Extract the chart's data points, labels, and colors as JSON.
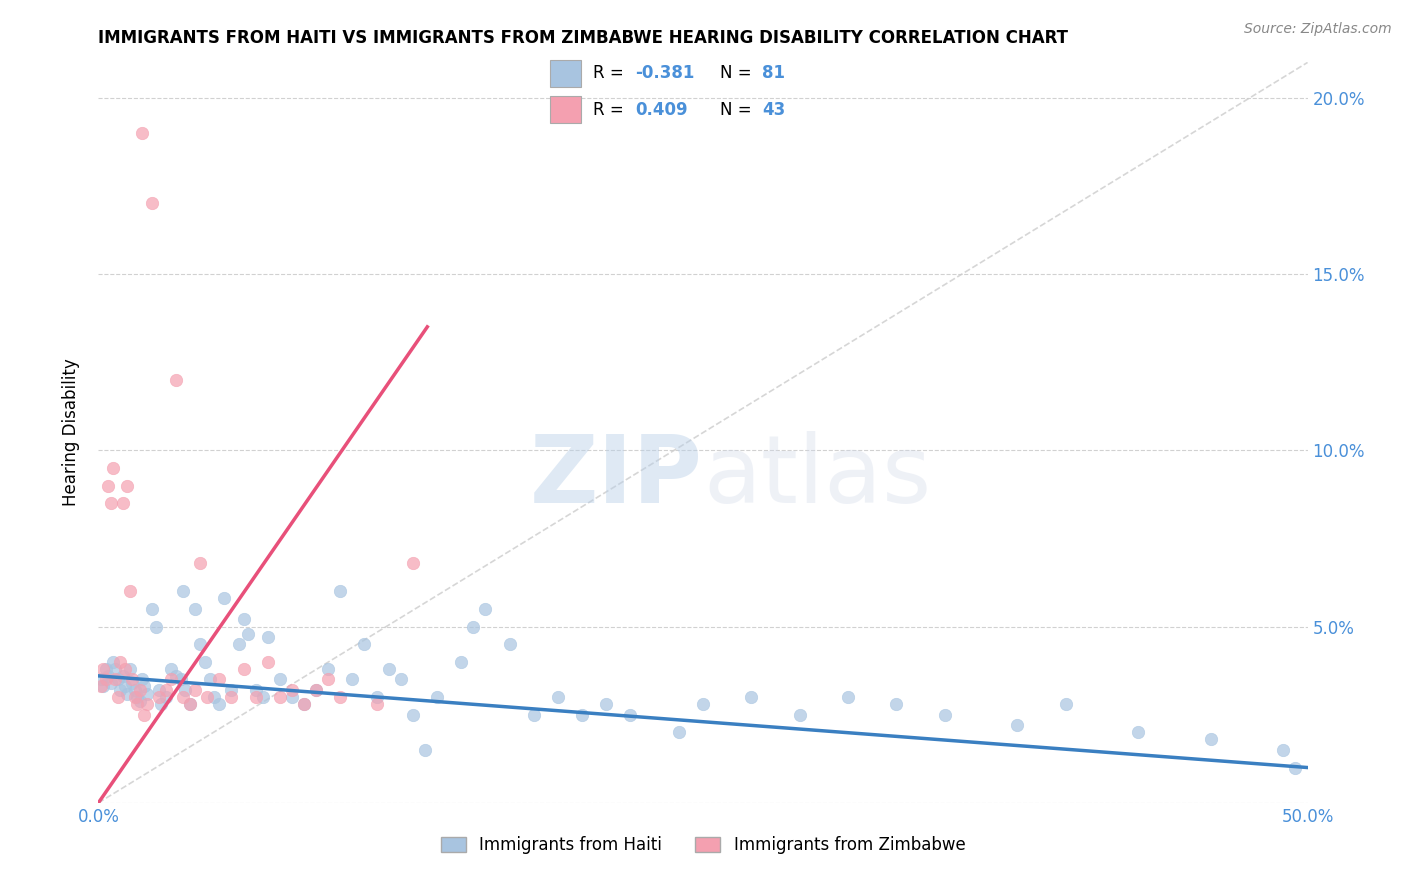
{
  "title": "IMMIGRANTS FROM HAITI VS IMMIGRANTS FROM ZIMBABWE HEARING DISABILITY CORRELATION CHART",
  "source": "Source: ZipAtlas.com",
  "ylabel": "Hearing Disability",
  "xlim": [
    0.0,
    0.5
  ],
  "ylim": [
    0.0,
    0.21
  ],
  "haiti_color": "#a8c4e0",
  "zimbabwe_color": "#f4a0b0",
  "haiti_line_color": "#3a7fc1",
  "zimbabwe_line_color": "#e8507a",
  "diagonal_color": "#cccccc",
  "R_haiti": -0.381,
  "N_haiti": 81,
  "R_zimbabwe": 0.409,
  "N_zimbabwe": 43,
  "legend_label_haiti": "Immigrants from Haiti",
  "legend_label_zimbabwe": "Immigrants from Zimbabwe",
  "watermark_zip": "ZIP",
  "watermark_atlas": "atlas",
  "background_color": "#ffffff",
  "haiti_scatter_x": [
    0.001,
    0.002,
    0.003,
    0.004,
    0.005,
    0.006,
    0.007,
    0.008,
    0.009,
    0.01,
    0.011,
    0.012,
    0.013,
    0.014,
    0.015,
    0.016,
    0.017,
    0.018,
    0.019,
    0.02,
    0.022,
    0.024,
    0.025,
    0.026,
    0.028,
    0.03,
    0.032,
    0.034,
    0.035,
    0.036,
    0.038,
    0.04,
    0.042,
    0.044,
    0.046,
    0.048,
    0.05,
    0.052,
    0.055,
    0.058,
    0.06,
    0.062,
    0.065,
    0.068,
    0.07,
    0.075,
    0.08,
    0.085,
    0.09,
    0.095,
    0.1,
    0.105,
    0.11,
    0.115,
    0.12,
    0.125,
    0.13,
    0.135,
    0.14,
    0.15,
    0.155,
    0.16,
    0.17,
    0.18,
    0.19,
    0.2,
    0.21,
    0.22,
    0.24,
    0.25,
    0.27,
    0.29,
    0.31,
    0.33,
    0.35,
    0.38,
    0.4,
    0.43,
    0.46,
    0.49,
    0.495
  ],
  "haiti_scatter_y": [
    0.035,
    0.033,
    0.038,
    0.036,
    0.034,
    0.04,
    0.038,
    0.035,
    0.032,
    0.036,
    0.033,
    0.031,
    0.038,
    0.034,
    0.032,
    0.03,
    0.029,
    0.035,
    0.033,
    0.031,
    0.055,
    0.05,
    0.032,
    0.028,
    0.03,
    0.038,
    0.036,
    0.035,
    0.06,
    0.032,
    0.028,
    0.055,
    0.045,
    0.04,
    0.035,
    0.03,
    0.028,
    0.058,
    0.032,
    0.045,
    0.052,
    0.048,
    0.032,
    0.03,
    0.047,
    0.035,
    0.03,
    0.028,
    0.032,
    0.038,
    0.06,
    0.035,
    0.045,
    0.03,
    0.038,
    0.035,
    0.025,
    0.015,
    0.03,
    0.04,
    0.05,
    0.055,
    0.045,
    0.025,
    0.03,
    0.025,
    0.028,
    0.025,
    0.02,
    0.028,
    0.03,
    0.025,
    0.03,
    0.028,
    0.025,
    0.022,
    0.028,
    0.02,
    0.018,
    0.015,
    0.01
  ],
  "zimbabwe_scatter_x": [
    0.001,
    0.002,
    0.003,
    0.004,
    0.005,
    0.006,
    0.007,
    0.008,
    0.009,
    0.01,
    0.011,
    0.012,
    0.013,
    0.014,
    0.015,
    0.016,
    0.017,
    0.018,
    0.019,
    0.02,
    0.022,
    0.025,
    0.028,
    0.03,
    0.032,
    0.035,
    0.038,
    0.04,
    0.042,
    0.045,
    0.05,
    0.055,
    0.06,
    0.065,
    0.07,
    0.075,
    0.08,
    0.085,
    0.09,
    0.095,
    0.1,
    0.115,
    0.13
  ],
  "zimbabwe_scatter_y": [
    0.033,
    0.038,
    0.035,
    0.09,
    0.085,
    0.095,
    0.035,
    0.03,
    0.04,
    0.085,
    0.038,
    0.09,
    0.06,
    0.035,
    0.03,
    0.028,
    0.032,
    0.19,
    0.025,
    0.028,
    0.17,
    0.03,
    0.032,
    0.035,
    0.12,
    0.03,
    0.028,
    0.032,
    0.068,
    0.03,
    0.035,
    0.03,
    0.038,
    0.03,
    0.04,
    0.03,
    0.032,
    0.028,
    0.032,
    0.035,
    0.03,
    0.028,
    0.068
  ],
  "haiti_trend_x0": 0.0,
  "haiti_trend_x1": 0.5,
  "haiti_trend_y0": 0.036,
  "haiti_trend_y1": 0.01,
  "zimbabwe_trend_x0": 0.0,
  "zimbabwe_trend_x1": 0.136,
  "zimbabwe_trend_y0": 0.0,
  "zimbabwe_trend_y1": 0.135
}
